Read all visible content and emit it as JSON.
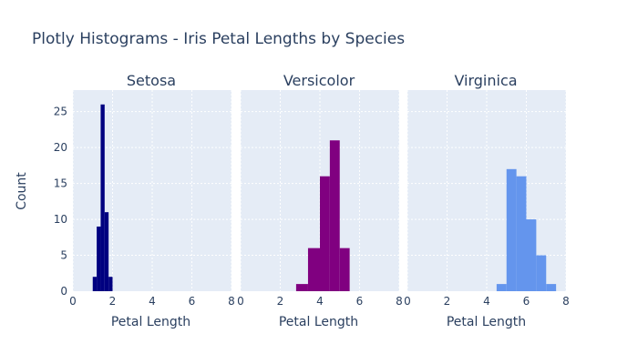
{
  "title": "Plotly Histograms - Iris Petal Lengths by Species",
  "ylabel": "Count",
  "chart_data": {
    "type": "bar",
    "title": "Plotly Histograms - Iris Petal Lengths by Species",
    "ylabel": "Count",
    "xlim": [
      0,
      8
    ],
    "ylim": [
      0,
      28
    ],
    "y_ticks": [
      0,
      5,
      10,
      15,
      20,
      25
    ],
    "x_ticks": [
      0,
      2,
      4,
      6,
      8
    ],
    "grid": true,
    "background": "#e5ecf6",
    "panels": [
      {
        "title": "Setosa",
        "xlabel": "Petal Length",
        "color": "#000080",
        "bins": [
          {
            "x0": 1.0,
            "x1": 1.2,
            "count": 2
          },
          {
            "x0": 1.2,
            "x1": 1.4,
            "count": 9
          },
          {
            "x0": 1.4,
            "x1": 1.6,
            "count": 26
          },
          {
            "x0": 1.6,
            "x1": 1.8,
            "count": 11
          },
          {
            "x0": 1.8,
            "x1": 2.0,
            "count": 2
          }
        ]
      },
      {
        "title": "Versicolor",
        "xlabel": "Petal Length",
        "color": "#800080",
        "bins": [
          {
            "x0": 2.8,
            "x1": 3.4,
            "count": 1
          },
          {
            "x0": 3.4,
            "x1": 4.0,
            "count": 6
          },
          {
            "x0": 4.0,
            "x1": 4.5,
            "count": 16
          },
          {
            "x0": 4.5,
            "x1": 5.0,
            "count": 21
          },
          {
            "x0": 5.0,
            "x1": 5.5,
            "count": 6
          }
        ]
      },
      {
        "title": "Virginica",
        "xlabel": "Petal Length",
        "color": "#6495ed",
        "bins": [
          {
            "x0": 4.5,
            "x1": 5.0,
            "count": 1
          },
          {
            "x0": 5.0,
            "x1": 5.5,
            "count": 17
          },
          {
            "x0": 5.5,
            "x1": 6.0,
            "count": 16
          },
          {
            "x0": 6.0,
            "x1": 6.5,
            "count": 10
          },
          {
            "x0": 6.5,
            "x1": 7.0,
            "count": 5
          },
          {
            "x0": 7.0,
            "x1": 7.5,
            "count": 1
          }
        ]
      }
    ]
  }
}
